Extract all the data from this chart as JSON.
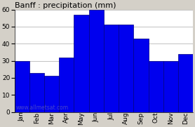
{
  "title": "Banff : precipitation (mm)",
  "months": [
    "Jan",
    "Feb",
    "Mar",
    "Apr",
    "May",
    "Jun",
    "Jul",
    "Aug",
    "Sep",
    "Oct",
    "Nov",
    "Dec"
  ],
  "bar_values": [
    30,
    23,
    21,
    32,
    57,
    60,
    51,
    51,
    43,
    30,
    30,
    34
  ],
  "bar_color": "#0000ee",
  "bar_edge_color": "#000080",
  "background_color": "#d4d0c8",
  "plot_bg_color": "#ffffff",
  "grid_color": "#aaaaaa",
  "ylim": [
    0,
    60
  ],
  "yticks": [
    0,
    10,
    20,
    30,
    40,
    50,
    60
  ],
  "watermark": "www.allmetsat.com",
  "watermark_color": "#4444cc",
  "title_fontsize": 8,
  "tick_fontsize": 6.5,
  "watermark_fontsize": 5.5
}
